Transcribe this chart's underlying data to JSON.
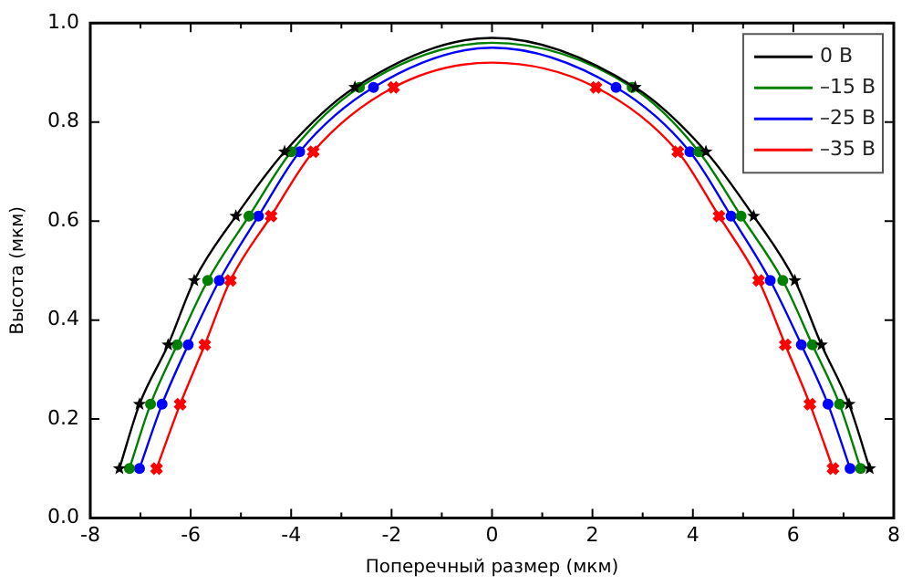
{
  "chart_data": {
    "type": "line",
    "xlabel": "Поперечный размер (мкм)",
    "ylabel": "Высота (мкм)",
    "xlim": [
      -8,
      8
    ],
    "xticks": [
      -8,
      -6,
      -4,
      -2,
      0,
      2,
      4,
      6,
      8
    ],
    "ylim": [
      0,
      1
    ],
    "yticks": [
      {
        "value": 0,
        "label": "0.0"
      },
      {
        "value": 0.2,
        "label": "0.2"
      },
      {
        "value": 0.4,
        "label": "0.4"
      },
      {
        "value": 0.6,
        "label": "0.6"
      },
      {
        "value": 0.8,
        "label": "0.8"
      },
      {
        "value": 1,
        "label": "1.0"
      }
    ],
    "grid": false,
    "legend": "top right",
    "line_style": "solid",
    "series": [
      {
        "name": "0 В",
        "color": "#000000",
        "type": "line",
        "marker": "none",
        "x": [
          -7.42,
          -7.02,
          -6.45,
          -5.93,
          -5.1,
          -4.13,
          -2.73,
          0,
          2.85,
          4.26,
          5.21,
          6.03,
          6.56,
          7.11,
          7.52
        ],
        "values": [
          0.1,
          0.23,
          0.35,
          0.48,
          0.61,
          0.74,
          0.87,
          0.97,
          0.87,
          0.74,
          0.61,
          0.48,
          0.35,
          0.23,
          0.1
        ]
      },
      {
        "name": "–15 В",
        "color": "#008000",
        "type": "line",
        "marker": "none",
        "x": [
          -7.22,
          -6.8,
          -6.27,
          -5.66,
          -4.84,
          -4,
          -2.64,
          0,
          2.79,
          4.12,
          4.96,
          5.79,
          6.38,
          6.92,
          7.34
        ],
        "values": [
          0.1,
          0.23,
          0.35,
          0.48,
          0.61,
          0.74,
          0.87,
          0.96,
          0.87,
          0.74,
          0.61,
          0.48,
          0.35,
          0.23,
          0.1
        ]
      },
      {
        "name": "–25 В",
        "color": "#0000ff",
        "type": "line",
        "marker": "none",
        "x": [
          -7.02,
          -6.57,
          -6.05,
          -5.43,
          -4.65,
          -3.83,
          -2.36,
          0,
          2.47,
          3.94,
          4.76,
          5.54,
          6.16,
          6.69,
          7.13
        ],
        "values": [
          0.1,
          0.23,
          0.35,
          0.48,
          0.61,
          0.74,
          0.87,
          0.95,
          0.87,
          0.74,
          0.61,
          0.48,
          0.35,
          0.23,
          0.1
        ]
      },
      {
        "name": "–35 В",
        "color": "#ff0000",
        "type": "line",
        "marker": "none",
        "x": [
          -6.68,
          -6.21,
          -5.72,
          -5.21,
          -4.4,
          -3.56,
          -1.96,
          0,
          2.07,
          3.7,
          4.52,
          5.31,
          5.84,
          6.33,
          6.79
        ],
        "values": [
          0.1,
          0.23,
          0.35,
          0.48,
          0.61,
          0.74,
          0.87,
          0.92,
          0.87,
          0.74,
          0.61,
          0.48,
          0.35,
          0.23,
          0.1
        ]
      },
      {
        "color": "#000000",
        "type": "scatter",
        "marker": "star",
        "x": [
          -7.42,
          -7.02,
          -6.45,
          -5.93,
          -5.1,
          -4.13,
          -2.73,
          2.85,
          4.26,
          5.21,
          6.03,
          6.56,
          7.11,
          7.52
        ],
        "values": [
          0.1,
          0.23,
          0.35,
          0.48,
          0.61,
          0.74,
          0.87,
          0.87,
          0.74,
          0.61,
          0.48,
          0.35,
          0.23,
          0.1
        ]
      },
      {
        "color": "#008000",
        "type": "scatter",
        "marker": "circle",
        "x": [
          -7.22,
          -6.8,
          -6.27,
          -5.66,
          -4.84,
          -4,
          -2.64,
          2.79,
          4.12,
          4.96,
          5.79,
          6.38,
          6.92,
          7.34
        ],
        "values": [
          0.1,
          0.23,
          0.35,
          0.48,
          0.61,
          0.74,
          0.87,
          0.87,
          0.74,
          0.61,
          0.48,
          0.35,
          0.23,
          0.1
        ]
      },
      {
        "color": "#0000ff",
        "type": "scatter",
        "marker": "circle",
        "x": [
          -7.02,
          -6.57,
          -6.05,
          -5.43,
          -4.65,
          -3.83,
          -2.36,
          2.47,
          3.94,
          4.76,
          5.54,
          6.16,
          6.69,
          7.13
        ],
        "values": [
          0.1,
          0.23,
          0.35,
          0.48,
          0.61,
          0.74,
          0.87,
          0.87,
          0.74,
          0.61,
          0.48,
          0.35,
          0.23,
          0.1
        ]
      },
      {
        "color": "#ff0000",
        "type": "scatter",
        "marker": "cross",
        "x": [
          -6.68,
          -6.21,
          -5.72,
          -5.21,
          -4.4,
          -3.56,
          -1.96,
          2.07,
          3.7,
          4.52,
          5.31,
          5.84,
          6.33,
          6.79
        ],
        "values": [
          0.1,
          0.23,
          0.35,
          0.48,
          0.61,
          0.74,
          0.87,
          0.87,
          0.74,
          0.61,
          0.48,
          0.35,
          0.23,
          0.1
        ]
      }
    ]
  }
}
